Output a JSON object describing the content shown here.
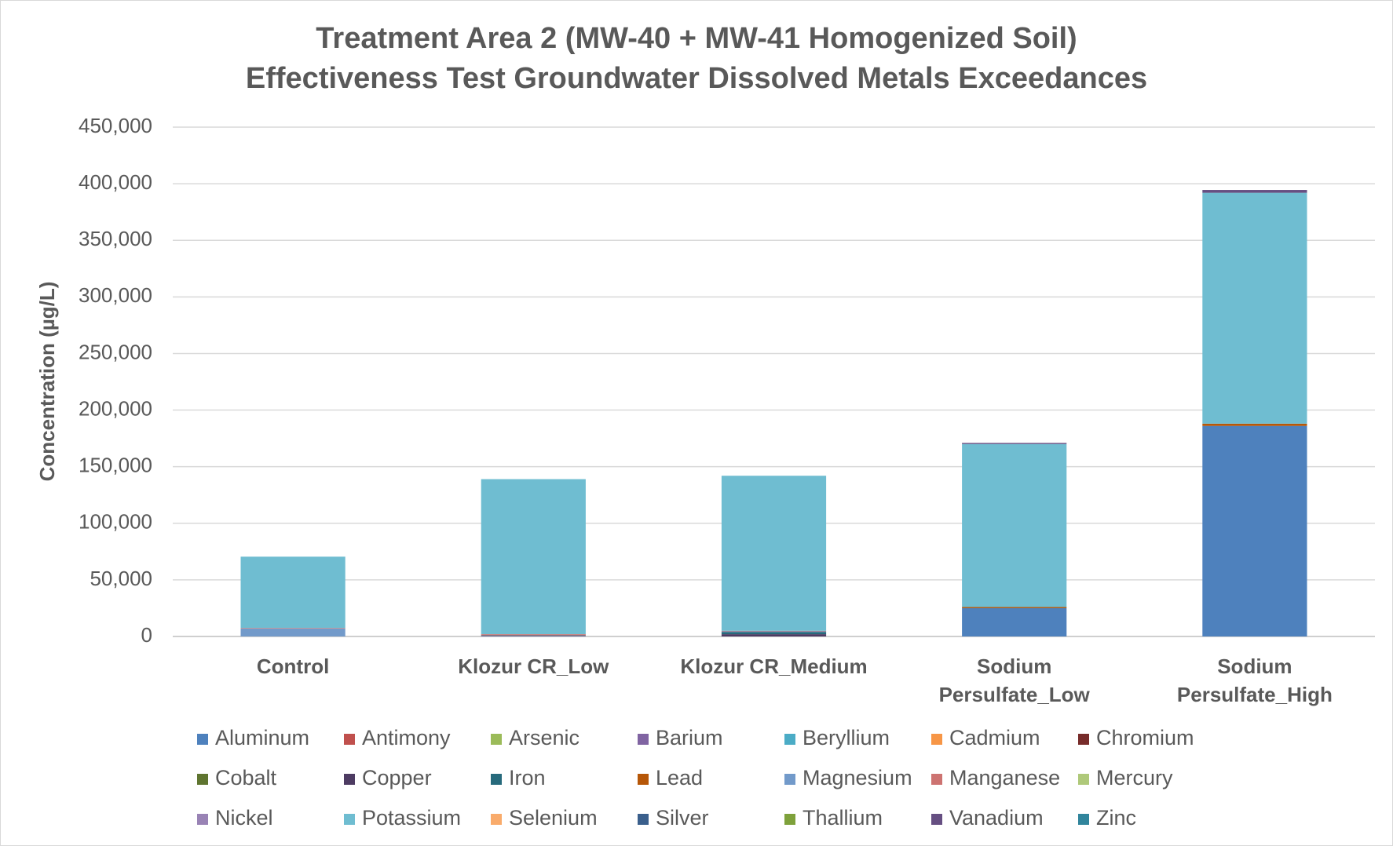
{
  "chart_data": {
    "type": "stacked_bar",
    "title": [
      "Treatment Area 2 (MW-40 + MW-41 Homogenized Soil)",
      "Effectiveness Test Groundwater Dissolved Metals Exceedances"
    ],
    "y_label": "Concentration (µg/L)",
    "categories": [
      "Control",
      "Klozur CR_Low",
      "Klozur CR_Medium",
      "Sodium Persulfate_Low",
      "Sodium Persulfate_High"
    ],
    "series": [
      {
        "name": "Aluminum",
        "color": "#4e81bd",
        "values": [
          0,
          0,
          0,
          25000,
          186000
        ]
      },
      {
        "name": "Antimony",
        "color": "#c0504d",
        "values": [
          0,
          0,
          0,
          0,
          0
        ]
      },
      {
        "name": "Arsenic",
        "color": "#9bbb59",
        "values": [
          0,
          0,
          0,
          0,
          0
        ]
      },
      {
        "name": "Barium",
        "color": "#8064a2",
        "values": [
          0,
          500,
          0,
          0,
          0
        ]
      },
      {
        "name": "Beryllium",
        "color": "#4bacc6",
        "values": [
          0,
          0,
          0,
          0,
          0
        ]
      },
      {
        "name": "Cadmium",
        "color": "#f79646",
        "values": [
          0,
          0,
          0,
          0,
          0
        ]
      },
      {
        "name": "Chromium",
        "color": "#772c2a",
        "values": [
          0,
          0,
          0,
          0,
          0
        ]
      },
      {
        "name": "Cobalt",
        "color": "#5f7530",
        "values": [
          0,
          0,
          0,
          0,
          0
        ]
      },
      {
        "name": "Copper",
        "color": "#4d3b62",
        "values": [
          0,
          0,
          2000,
          0,
          0
        ]
      },
      {
        "name": "Iron",
        "color": "#276a7c",
        "values": [
          0,
          500,
          2000,
          0,
          0
        ]
      },
      {
        "name": "Lead",
        "color": "#b65708",
        "values": [
          0,
          0,
          0,
          1000,
          2000
        ]
      },
      {
        "name": "Magnesium",
        "color": "#729aca",
        "values": [
          7000,
          0,
          500,
          0,
          0
        ]
      },
      {
        "name": "Manganese",
        "color": "#cd7371",
        "values": [
          500,
          1000,
          500,
          0,
          0
        ]
      },
      {
        "name": "Mercury",
        "color": "#afc97a",
        "values": [
          0,
          0,
          0,
          0,
          0
        ]
      },
      {
        "name": "Nickel",
        "color": "#9983b5",
        "values": [
          0,
          0,
          0,
          0,
          0
        ]
      },
      {
        "name": "Potassium",
        "color": "#6fbdd1",
        "values": [
          63000,
          137000,
          137000,
          144000,
          204000
        ]
      },
      {
        "name": "Selenium",
        "color": "#f9ab6b",
        "values": [
          0,
          0,
          0,
          0,
          0
        ]
      },
      {
        "name": "Silver",
        "color": "#3a5f8c",
        "values": [
          0,
          0,
          0,
          0,
          0
        ]
      },
      {
        "name": "Thallium",
        "color": "#7ea13b",
        "values": [
          0,
          0,
          0,
          0,
          0
        ]
      },
      {
        "name": "Vanadium",
        "color": "#664f82",
        "values": [
          0,
          0,
          0,
          1000,
          2500
        ]
      },
      {
        "name": "Zinc",
        "color": "#31859c",
        "values": [
          0,
          0,
          0,
          0,
          0
        ]
      }
    ],
    "ylim": [
      0,
      450000
    ],
    "yticks": [
      0,
      {
        "value": 50000,
        "label": "50,000"
      },
      {
        "value": 100000,
        "label": "100,000"
      },
      {
        "value": 150000,
        "label": "150,000"
      },
      {
        "value": 200000,
        "label": "200,000"
      },
      {
        "value": 250000,
        "label": "250,000"
      },
      {
        "value": 300000,
        "label": "300,000"
      },
      {
        "value": 350000,
        "label": "350,000"
      },
      {
        "value": 400000,
        "label": "400,000"
      },
      {
        "value": 450000,
        "label": "450,000"
      }
    ],
    "grid": true,
    "legend": "bottom"
  }
}
